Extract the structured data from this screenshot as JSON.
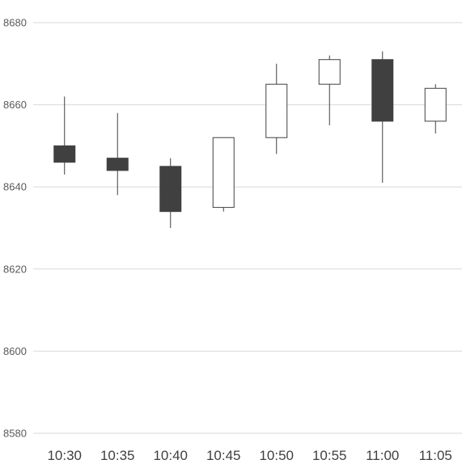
{
  "chart_data": {
    "type": "candlestick",
    "title": "",
    "xlabel": "",
    "ylabel": "",
    "ylim": [
      8580,
      8680
    ],
    "yticks": [
      8580,
      8600,
      8620,
      8640,
      8660,
      8680
    ],
    "categories": [
      "10:30",
      "10:35",
      "10:40",
      "10:45",
      "10:50",
      "10:55",
      "11:00",
      "11:05"
    ],
    "candles": [
      {
        "x": "10:30",
        "open": 8650,
        "high": 8662,
        "low": 8643,
        "close": 8646
      },
      {
        "x": "10:35",
        "open": 8647,
        "high": 8658,
        "low": 8638,
        "close": 8644
      },
      {
        "x": "10:40",
        "open": 8645,
        "high": 8647,
        "low": 8630,
        "close": 8634
      },
      {
        "x": "10:45",
        "open": 8635,
        "high": 8652,
        "low": 8634,
        "close": 8652
      },
      {
        "x": "10:50",
        "open": 8652,
        "high": 8670,
        "low": 8648,
        "close": 8665
      },
      {
        "x": "10:55",
        "open": 8665,
        "high": 8672,
        "low": 8655,
        "close": 8671
      },
      {
        "x": "11:00",
        "open": 8671,
        "high": 8673,
        "low": 8641,
        "close": 8656
      },
      {
        "x": "11:05",
        "open": 8656,
        "high": 8665,
        "low": 8653,
        "close": 8664
      }
    ],
    "colors": {
      "up": "#ffffff",
      "down": "#404040",
      "wick": "#404040",
      "grid": "#d9d9d9"
    },
    "grid": true,
    "legend": "none"
  }
}
